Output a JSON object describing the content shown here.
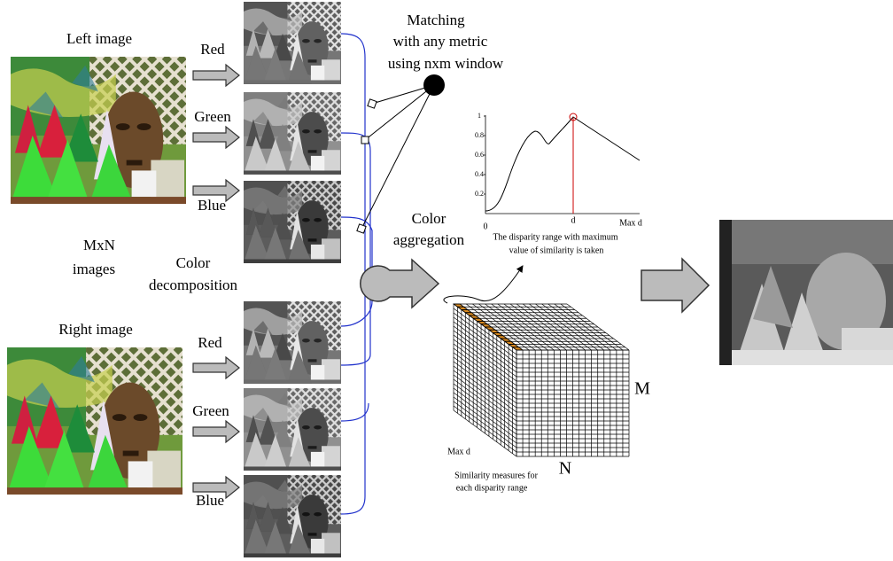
{
  "left_image": {
    "label": "Left image"
  },
  "right_image": {
    "label": "Right image"
  },
  "left_channels": [
    "Red",
    "Green",
    "Blue"
  ],
  "right_channels": [
    "Red",
    "Green",
    "Blue"
  ],
  "mxn_label": [
    "MxN",
    "images"
  ],
  "decomposition_label": [
    "Color",
    "decomposition"
  ],
  "matching_label": [
    "Matching",
    "with any metric",
    "using nxm window"
  ],
  "aggregation_label": [
    "Color",
    "aggregation"
  ],
  "plot": {
    "yticks": [
      1,
      0.8,
      0.6,
      0.4,
      0.2
    ],
    "x_labels": [
      0,
      "d",
      "Max d"
    ],
    "caption": [
      "The disparity range with maximum",
      "value of similarity is taken"
    ]
  },
  "cube": {
    "height_label": "M",
    "width_label": "N",
    "depth_label": "Max d",
    "caption": [
      "Similarity measures for",
      "each disparity range"
    ]
  }
}
